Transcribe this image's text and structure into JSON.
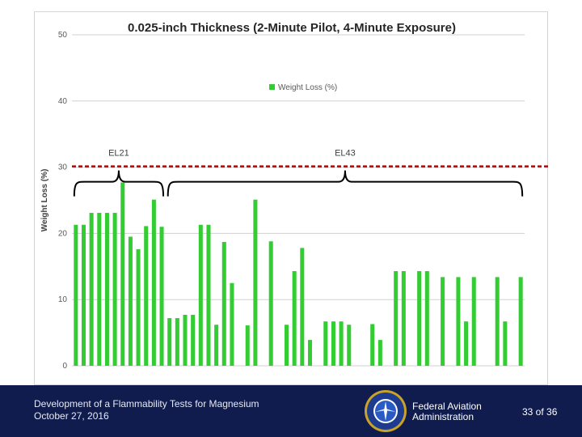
{
  "chart_data": {
    "type": "bar",
    "title": "0.025-inch Thickness (2-Minute Pilot, 4-Minute Exposure)",
    "ylabel": "Weight Loss (%)",
    "xlabel": "",
    "ylim": [
      0,
      50
    ],
    "yticks": [
      "0",
      "10",
      "20",
      "30",
      "40",
      "50"
    ],
    "grid": true,
    "legend_position": "top-center",
    "series": [
      {
        "name": "Weight Loss (%)",
        "color": "#33cc33",
        "values": [
          21.3,
          21.3,
          23.1,
          23.1,
          23.1,
          23.1,
          27.7,
          19.5,
          17.6,
          21.1,
          25.1,
          21.0,
          7.2,
          7.2,
          7.7,
          7.7,
          21.3,
          21.3,
          6.2,
          18.7,
          12.5,
          null,
          6.1,
          25.1,
          null,
          18.8,
          null,
          6.2,
          14.3,
          17.8,
          3.9,
          null,
          6.7,
          6.7,
          6.7,
          6.2,
          null,
          null,
          6.3,
          3.9,
          null,
          14.3,
          14.3,
          null,
          14.3,
          14.3,
          null,
          13.4,
          null,
          13.4,
          6.7,
          13.4,
          null,
          null,
          13.4,
          6.7,
          null,
          13.4
        ]
      }
    ],
    "reference_line": {
      "value": 30,
      "color": "#c00000",
      "style": "dashed"
    },
    "annotations": [
      {
        "label": "EL21",
        "from": 1,
        "to": 12
      },
      {
        "label": "EL43",
        "from": 13,
        "to": 58
      }
    ]
  },
  "footer": {
    "title": "Development of a Flammability Tests for Magnesium",
    "date": "October 27, 2016",
    "agency_line1": "Federal Aviation",
    "agency_line2": "Administration",
    "page": "33 of 36"
  },
  "colors": {
    "footer_bg": "#101c4e",
    "bar": "#33cc33",
    "reference": "#c00000"
  },
  "icons": {
    "seal": "faa-seal-icon"
  }
}
